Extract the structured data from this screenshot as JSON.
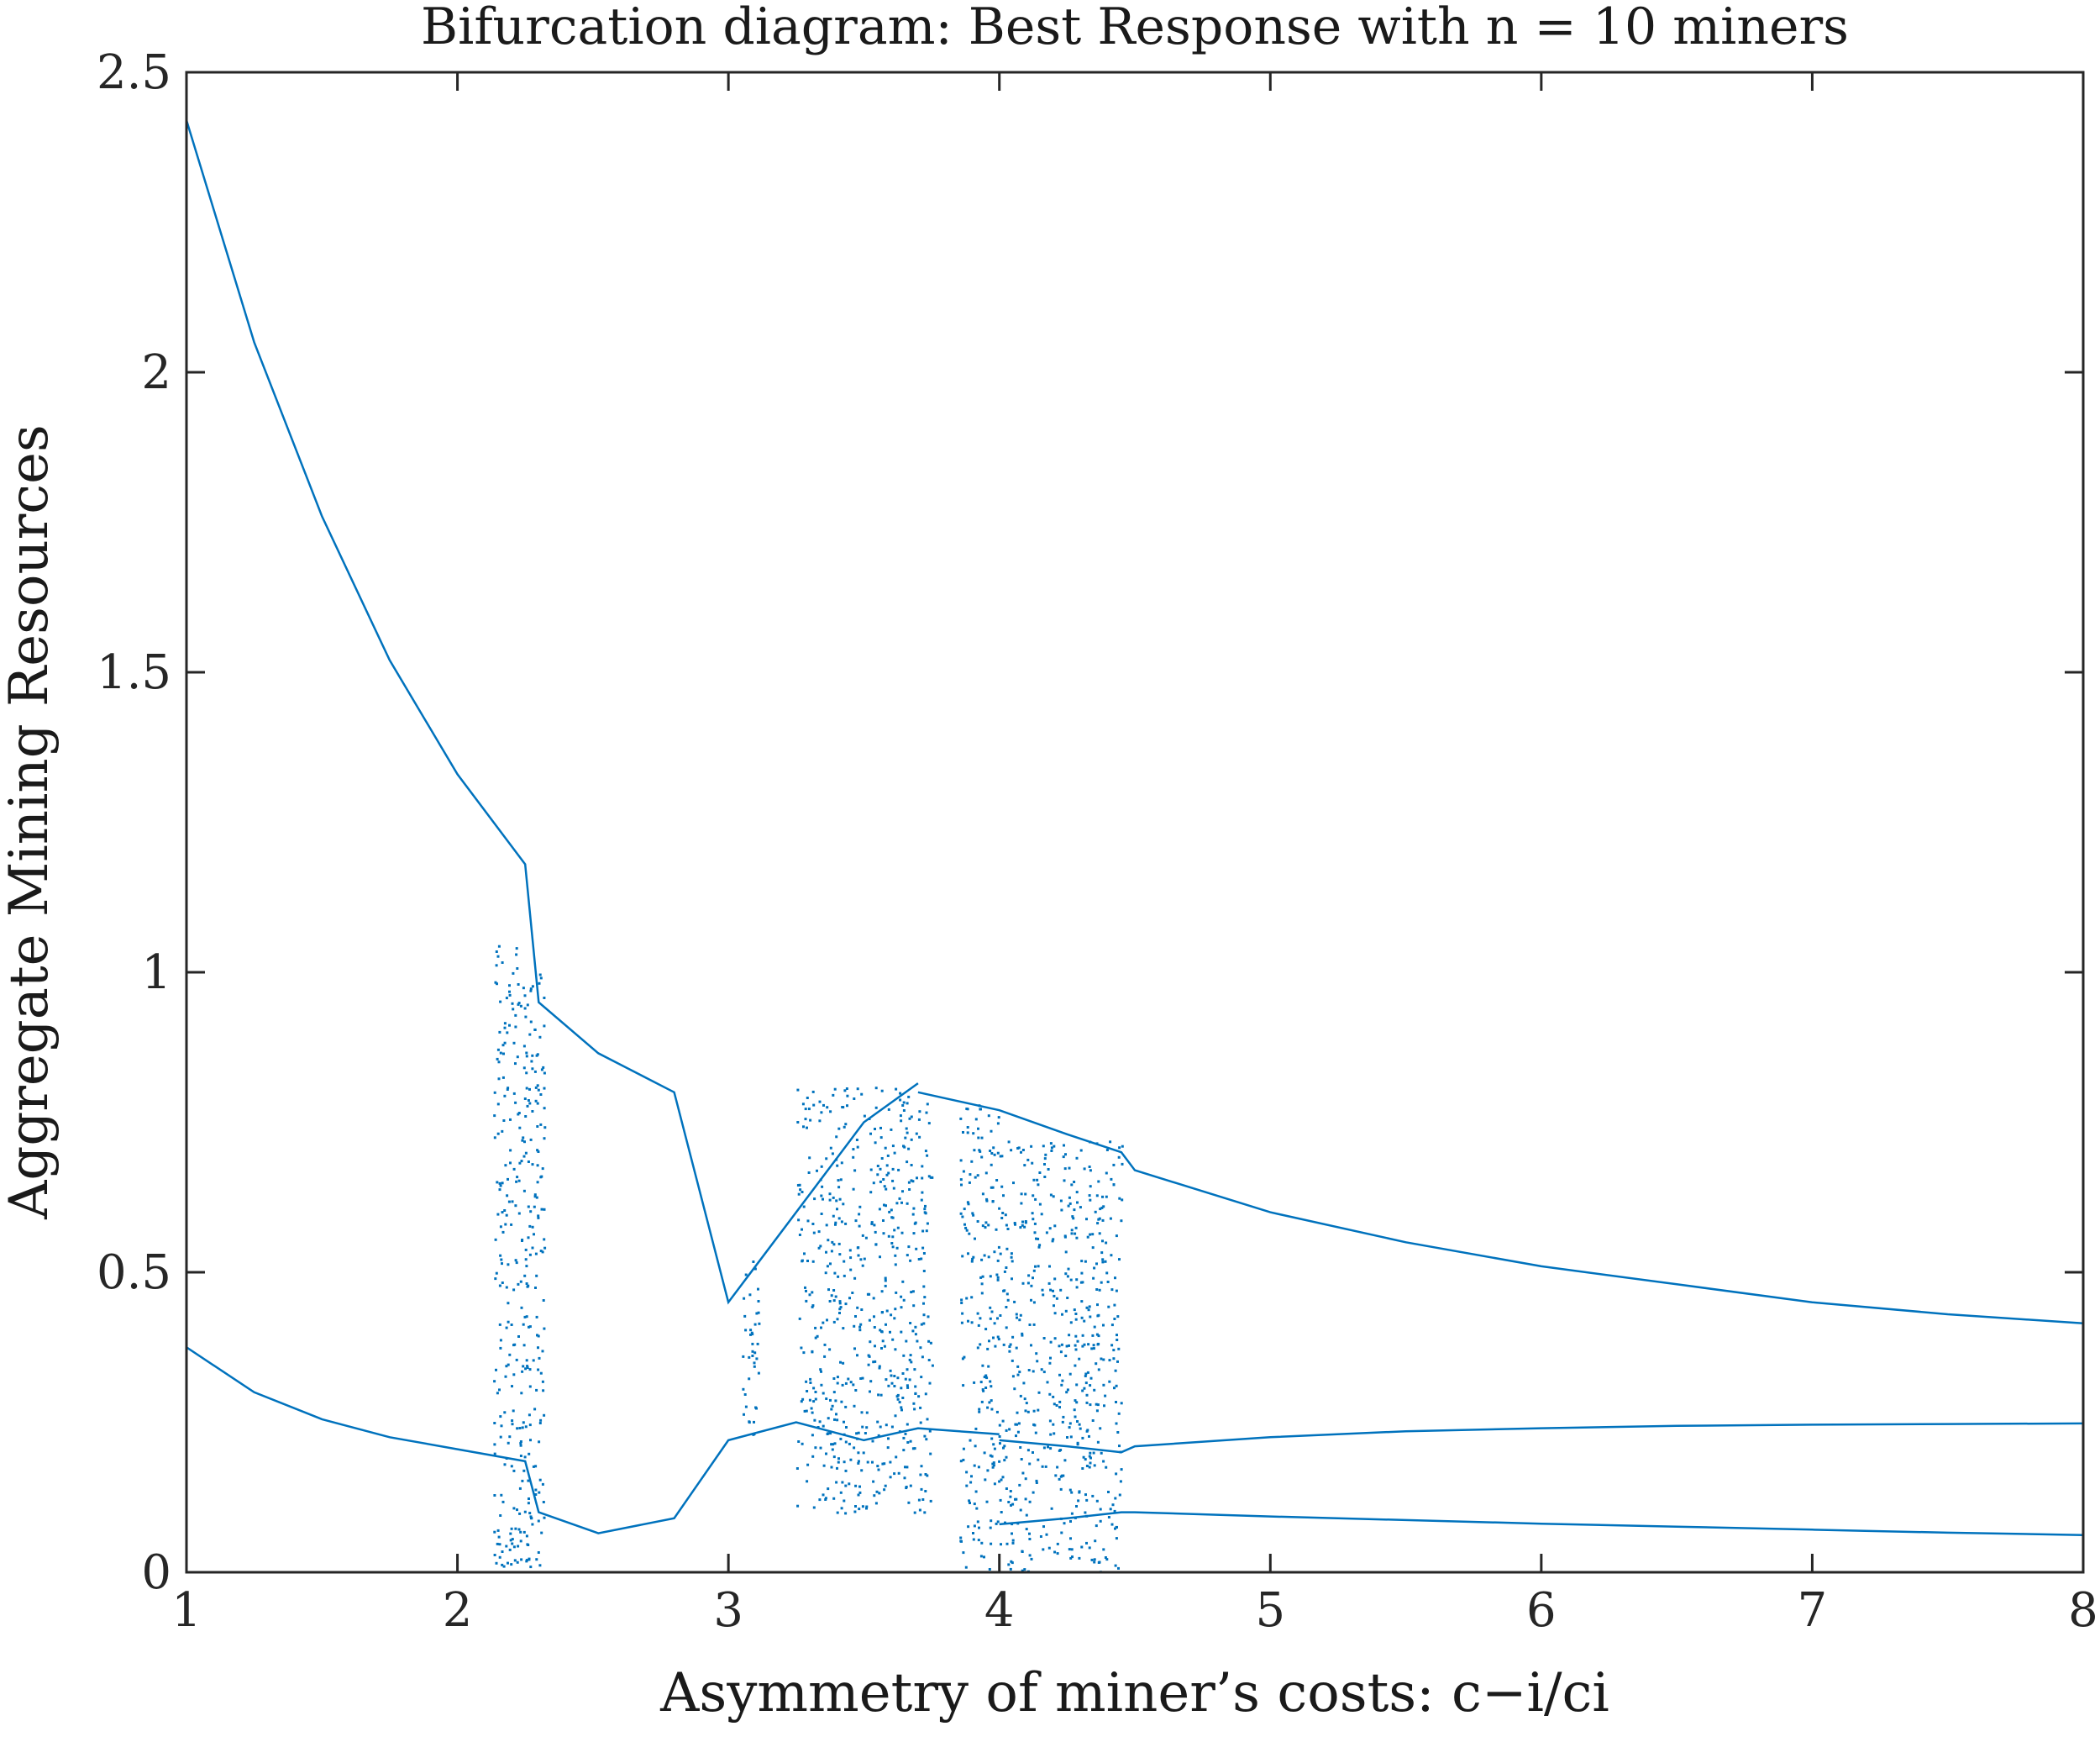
{
  "chart_data": {
    "type": "scatter",
    "title": "Bifurcation diagram: Best Response with n = 10 miners",
    "xlabel": "Asymmetry of miner’s costs: c−i/ci",
    "ylabel": "Aggregate Mining Resources",
    "xlim": [
      1,
      8
    ],
    "ylim": [
      0,
      2.5
    ],
    "xticks": [
      "1",
      "2",
      "3",
      "4",
      "5",
      "6",
      "7",
      "8"
    ],
    "yticks": [
      "0",
      "0.5",
      "1",
      "1.5",
      "2",
      "2.5"
    ],
    "grid": false,
    "legend": "none",
    "color": "#0072BD",
    "series": [
      {
        "x": [
          1.0,
          1.25,
          1.5,
          1.75,
          2.0,
          2.25,
          2.3,
          2.52,
          2.8,
          3.0,
          3.25,
          3.5,
          3.7
        ],
        "values": [
          2.42,
          2.05,
          1.76,
          1.52,
          1.33,
          1.18,
          0.95,
          0.865,
          0.8,
          0.45,
          0.6,
          0.75,
          0.815
        ]
      },
      {
        "x": [
          3.7,
          4.0,
          4.25,
          4.45,
          4.5,
          5.0,
          5.5,
          6.0,
          6.5,
          7.0,
          7.5,
          8.0
        ],
        "values": [
          0.8,
          0.77,
          0.73,
          0.7,
          0.67,
          0.6,
          0.55,
          0.51,
          0.48,
          0.45,
          0.43,
          0.415
        ]
      },
      {
        "x": [
          1.0,
          1.25,
          1.5,
          1.75,
          2.0,
          2.25,
          2.3,
          2.52,
          2.8,
          3.0,
          3.25,
          3.5,
          3.7,
          4.0
        ],
        "values": [
          0.375,
          0.3,
          0.255,
          0.225,
          0.205,
          0.185,
          0.1,
          0.065,
          0.09,
          0.22,
          0.25,
          0.22,
          0.24,
          0.23
        ]
      },
      {
        "x": [
          4.0,
          4.25,
          4.45,
          4.5,
          5.0,
          5.5,
          6.0,
          6.5,
          7.0,
          7.5,
          8.0
        ],
        "values": [
          0.22,
          0.21,
          0.2,
          0.21,
          0.225,
          0.235,
          0.24,
          0.244,
          0.246,
          0.247,
          0.248
        ]
      },
      {
        "x": [
          4.0,
          4.25,
          4.45,
          4.5,
          5.0,
          5.5,
          6.0,
          6.5,
          7.0,
          7.5,
          8.0
        ],
        "values": [
          0.08,
          0.09,
          0.1,
          0.1,
          0.093,
          0.087,
          0.081,
          0.076,
          0.071,
          0.066,
          0.062
        ]
      },
      {
        "x": [
          1.0,
          2.0,
          3.0,
          4.0,
          5.0,
          6.0,
          7.0,
          8.0
        ],
        "values": [
          0.0,
          0.0,
          0.0,
          0.0,
          0.0,
          0.0,
          0.0,
          0.0
        ]
      }
    ],
    "chaotic_regions": [
      {
        "x": [
          2.13,
          2.27
        ],
        "y": [
          0.0,
          1.05
        ]
      },
      {
        "x": [
          2.25,
          2.32
        ],
        "y": [
          0.0,
          1.0
        ]
      },
      {
        "x": [
          3.05,
          3.11
        ],
        "y": [
          0.21,
          0.53
        ]
      },
      {
        "x": [
          3.25,
          3.75
        ],
        "y": [
          0.1,
          0.81
        ]
      },
      {
        "x": [
          3.85,
          4.0
        ],
        "y": [
          0.0,
          0.78
        ]
      },
      {
        "x": [
          4.0,
          4.45
        ],
        "y": [
          0.0,
          0.72
        ]
      }
    ]
  }
}
